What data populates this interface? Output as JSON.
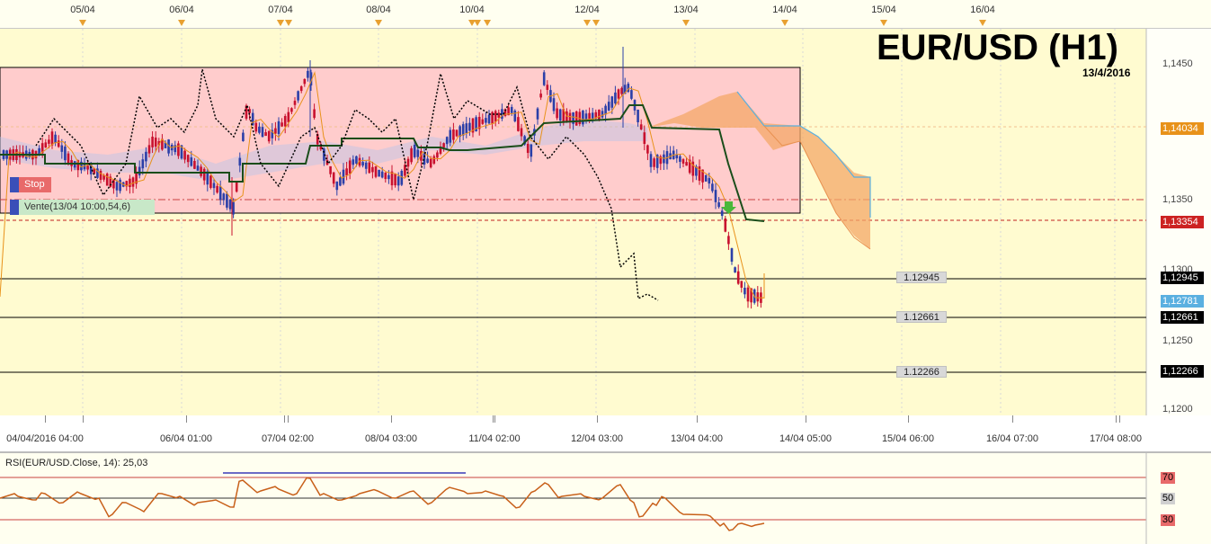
{
  "chart": {
    "title": "EUR/USD (H1)",
    "date": "13/4/2016"
  },
  "top_dates": [
    {
      "label": "05/04",
      "x": 92
    },
    {
      "label": "06/04",
      "x": 202
    },
    {
      "label": "07/04",
      "x": 312
    },
    {
      "label": "08/04",
      "x": 421
    },
    {
      "label": "10/04",
      "x": 525
    },
    {
      "label": "12/04",
      "x": 653
    },
    {
      "label": "13/04",
      "x": 763
    },
    {
      "label": "14/04",
      "x": 873
    },
    {
      "label": "15/04",
      "x": 983
    },
    {
      "label": "16/04",
      "x": 1093
    }
  ],
  "price_axis": {
    "labels": [
      "1,1450",
      "1,1350",
      "1,1300",
      "1,1250",
      "1,1200"
    ]
  },
  "price_tags": {
    "current_orange": {
      "label": "1,14034",
      "color": "#e8921a"
    },
    "red": {
      "label": "1,13354",
      "color": "#cc2222"
    },
    "black_1": {
      "label": "1,12945",
      "color": "#000000"
    },
    "blue": {
      "label": "1,12781",
      "color": "#5ab0e0"
    },
    "black_2": {
      "label": "1,12661",
      "color": "#000000"
    },
    "black_3": {
      "label": "1,12266",
      "color": "#000000"
    }
  },
  "levels": {
    "l1": "1.12945",
    "l2": "1.12661",
    "l3": "1.12266"
  },
  "orders": {
    "stop": "Stop",
    "sell": "Vente(13/04 10:00,54,6)"
  },
  "x_axis": {
    "labels": [
      "04/04/2016 04:00",
      "06/04 01:00",
      "07/04 02:00",
      "08/04 03:00",
      "11/04 02:00",
      "12/04 03:00",
      "13/04 04:00",
      "14/04 05:00",
      "15/04 06:00",
      "16/04 07:00",
      "17/04 08:00"
    ]
  },
  "rsi": {
    "title": "RSI(EUR/USD.Close, 14): 25,03",
    "levels": [
      "70",
      "50",
      "30"
    ]
  },
  "colors": {
    "chart_bg": "#fffbd0",
    "box_fill": "#ffcccc",
    "bull_candle": "#2b3fa8",
    "bear_candle": "#c8102e",
    "kijun": "#1a4d1a",
    "tenkan": "#e8921a",
    "chikou": "#000000",
    "kumo_bear": "#f4a868",
    "kumo_bull": "#b8c4e8",
    "rsi_line": "#c8601a"
  }
}
